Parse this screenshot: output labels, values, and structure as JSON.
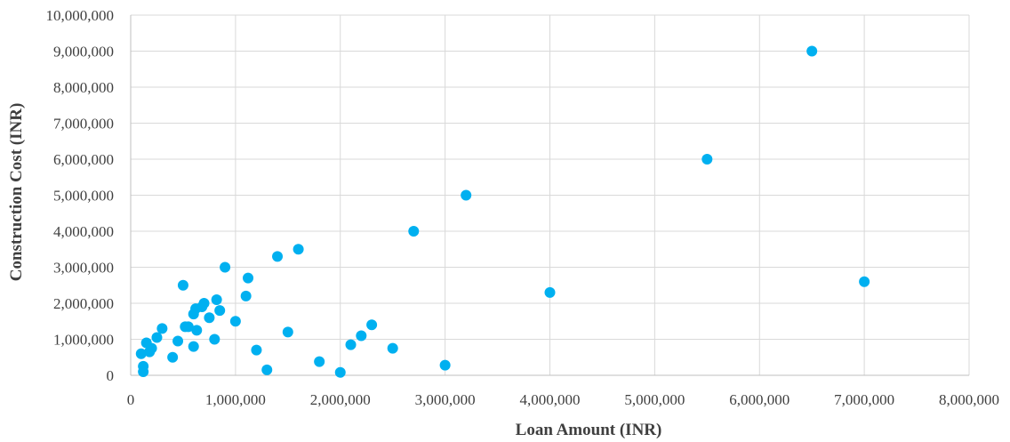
{
  "chart_data": {
    "type": "scatter",
    "title": "",
    "xlabel": "Loan Amount (INR)",
    "ylabel": "Construction Cost (INR)",
    "xlim": [
      0,
      8000000
    ],
    "ylim": [
      0,
      10000000
    ],
    "x_ticks": [
      0,
      1000000,
      2000000,
      3000000,
      4000000,
      5000000,
      6000000,
      7000000,
      8000000
    ],
    "y_ticks": [
      0,
      1000000,
      2000000,
      3000000,
      4000000,
      5000000,
      6000000,
      7000000,
      8000000,
      9000000,
      10000000
    ],
    "x_tick_labels": [
      "0",
      "1,000,000",
      "2,000,000",
      "3,000,000",
      "4,000,000",
      "5,000,000",
      "6,000,000",
      "7,000,000",
      "8,000,000"
    ],
    "y_tick_labels": [
      "0",
      "1,000,000",
      "2,000,000",
      "3,000,000",
      "4,000,000",
      "5,000,000",
      "6,000,000",
      "7,000,000",
      "8,000,000",
      "9,000,000",
      "10,000,000"
    ],
    "grid": true,
    "legend": "none",
    "marker_color": "#00B0F0",
    "grid_color": "#D9D9D9",
    "text_color": "#3F3F3F",
    "series": [
      {
        "x": [
          100000,
          120000,
          120000,
          150000,
          180000,
          200000,
          250000,
          300000,
          400000,
          450000,
          500000,
          520000,
          550000,
          600000,
          600000,
          620000,
          630000,
          680000,
          700000,
          750000,
          800000,
          820000,
          850000,
          900000,
          1000000,
          1100000,
          1120000,
          1200000,
          1300000,
          1400000,
          1500000,
          1600000,
          1800000,
          2000000,
          2100000,
          2200000,
          2300000,
          2500000,
          2700000,
          3000000,
          3200000,
          4000000,
          5500000,
          6500000,
          7000000
        ],
        "y": [
          600000,
          250000,
          100000,
          900000,
          650000,
          750000,
          1050000,
          1300000,
          500000,
          950000,
          2500000,
          1350000,
          1350000,
          1700000,
          800000,
          1850000,
          1250000,
          1900000,
          2000000,
          1600000,
          1000000,
          2100000,
          1800000,
          3000000,
          1500000,
          2200000,
          2700000,
          700000,
          150000,
          3300000,
          1200000,
          3500000,
          380000,
          80000,
          850000,
          1100000,
          1400000,
          750000,
          4000000,
          280000,
          5000000,
          2300000,
          6000000,
          9000000,
          2600000
        ]
      }
    ]
  }
}
